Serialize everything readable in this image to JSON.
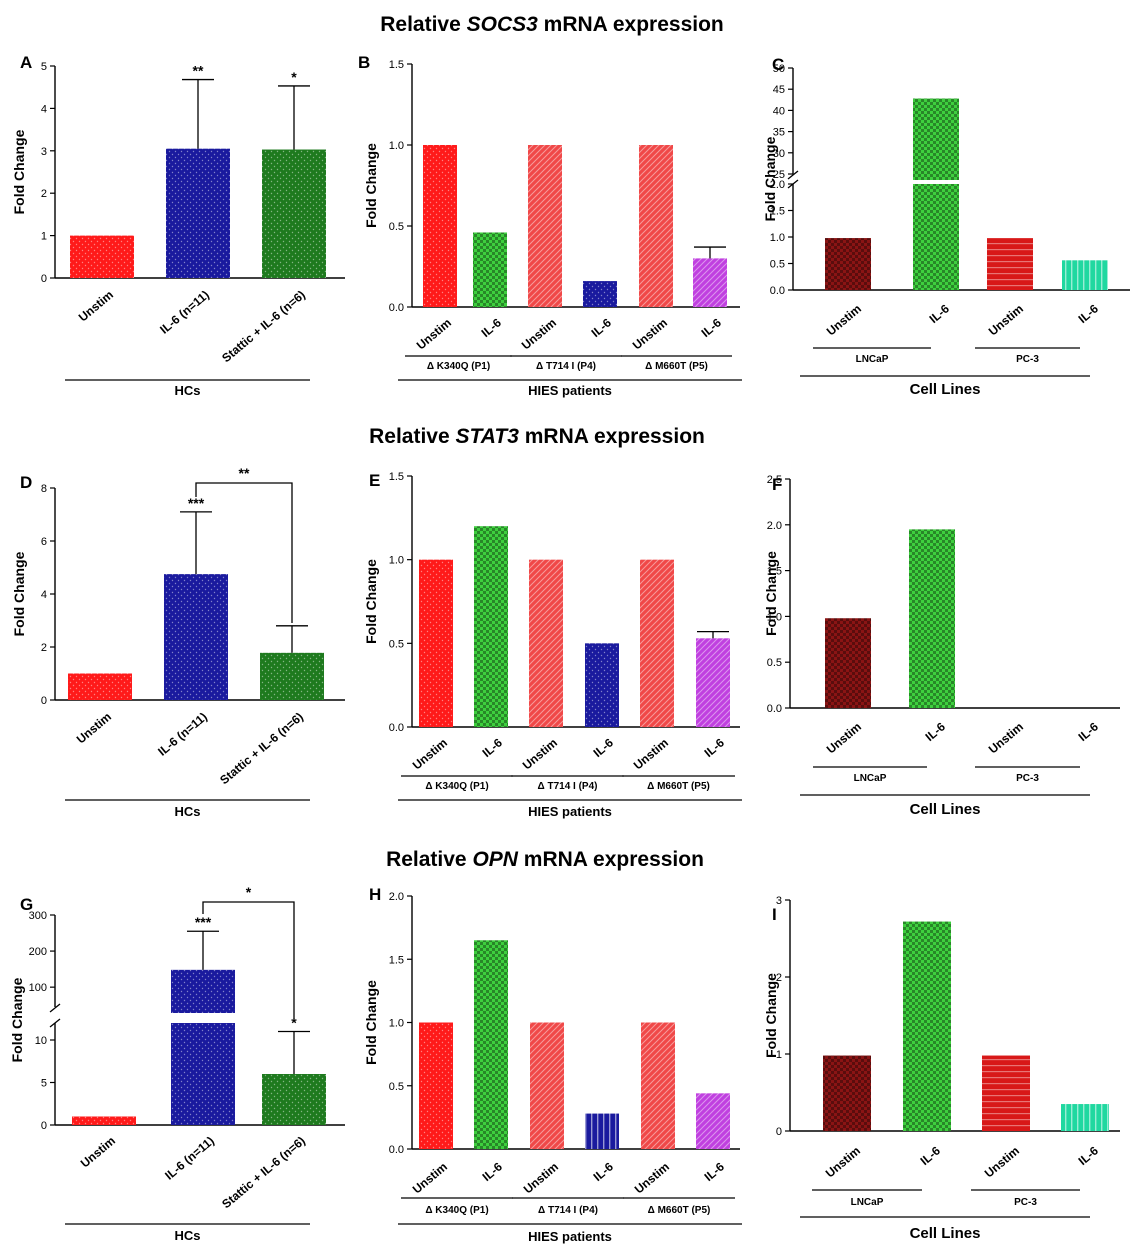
{
  "colors": {
    "red": "#ff1a1a",
    "blue": "#1a1a9e",
    "green": "#1e7a1e",
    "salmon": "#f04848",
    "ltgreen": "#3ecf3e",
    "purple": "#c040e0",
    "darkred": "#8a1414",
    "crimson": "#d81818",
    "teal": "#20d8a0"
  },
  "row_titles": [
    {
      "pre": "Relative ",
      "gene": "SOCS3",
      "post": " mRNA expression"
    },
    {
      "pre": "Relative ",
      "gene": "STAT3",
      "post": " mRNA expression"
    },
    {
      "pre": "Relative ",
      "gene": "OPN",
      "post": " mRNA expression"
    }
  ],
  "chart_data": [
    {
      "panel": "A",
      "type": "bar",
      "ylabel": "Fold Change",
      "ylim": [
        0,
        5
      ],
      "yticks": [
        "0",
        "1",
        "2",
        "3",
        "4",
        "5"
      ],
      "categories": [
        "Unstim",
        "IL-6 (n=11)",
        "Stattic + IL-6 (n=6)"
      ],
      "values": [
        1.0,
        3.05,
        3.03
      ],
      "errors": [
        0,
        1.63,
        1.5
      ],
      "colors": [
        "red",
        "blue",
        "green"
      ],
      "significance": [
        "",
        "**",
        "*"
      ],
      "group_label": "HCs"
    },
    {
      "panel": "B",
      "type": "bar",
      "ylabel": "Fold Change",
      "ylim": [
        0,
        1.5
      ],
      "yticks": [
        "0.0",
        "0.5",
        "1.0",
        "1.5"
      ],
      "categories": [
        "Unstim",
        "IL-6",
        "Unstim",
        "IL-6",
        "Unstim",
        "IL-6"
      ],
      "values": [
        1.0,
        0.46,
        1.0,
        0.16,
        1.0,
        0.3
      ],
      "errors": [
        0,
        0,
        0,
        0,
        0,
        0.07
      ],
      "colors": [
        "red",
        "ltgreen",
        "salmon",
        "blue",
        "salmon",
        "purple"
      ],
      "subgroups": [
        "Δ K340Q (P1)",
        "Δ T714 I (P4)",
        "Δ M660T (P5)"
      ],
      "group_label": "HIES patients"
    },
    {
      "panel": "C",
      "type": "bar",
      "ylabel": "Fold Change",
      "yticks_low": [
        "0.0",
        "0.5",
        "1.0",
        "1.5",
        "2.0"
      ],
      "yticks_high": [
        "25",
        "30",
        "35",
        "40",
        "45",
        "50"
      ],
      "categories": [
        "Unstim",
        "IL-6",
        "Unstim",
        "IL-6"
      ],
      "values": [
        0.98,
        42.8,
        0.98,
        0.56
      ],
      "colors": [
        "darkred",
        "ltgreen",
        "crimson",
        "teal"
      ],
      "subgroups": [
        "LNCaP",
        "PC-3"
      ],
      "group_label": "Cell Lines"
    },
    {
      "panel": "D",
      "type": "bar",
      "ylabel": "Fold Change",
      "ylim": [
        0,
        8
      ],
      "yticks": [
        "0",
        "2",
        "4",
        "6",
        "8"
      ],
      "categories": [
        "Unstim",
        "IL-6 (n=11)",
        "Stattic + IL-6 (n=6)"
      ],
      "values": [
        1.0,
        4.75,
        1.78
      ],
      "errors": [
        0,
        2.35,
        1.02
      ],
      "colors": [
        "red",
        "blue",
        "green"
      ],
      "significance": [
        "",
        "***",
        ""
      ],
      "bracket_sig": "**",
      "group_label": "HCs"
    },
    {
      "panel": "E",
      "type": "bar",
      "ylabel": "Fold Change",
      "ylim": [
        0,
        1.5
      ],
      "yticks": [
        "0.0",
        "0.5",
        "1.0",
        "1.5"
      ],
      "categories": [
        "Unstim",
        "IL-6",
        "Unstim",
        "IL-6",
        "Unstim",
        "IL-6"
      ],
      "values": [
        1.0,
        1.2,
        1.0,
        0.5,
        1.0,
        0.53
      ],
      "errors": [
        0,
        0,
        0,
        0,
        0,
        0.04
      ],
      "colors": [
        "red",
        "ltgreen",
        "salmon",
        "blue",
        "salmon",
        "purple"
      ],
      "subgroups": [
        "Δ K340Q (P1)",
        "Δ T714 I (P4)",
        "Δ M660T (P5)"
      ],
      "group_label": "HIES patients"
    },
    {
      "panel": "F",
      "type": "bar",
      "ylabel": "Fold Change",
      "ylim": [
        0,
        2.5
      ],
      "yticks": [
        "0.0",
        "0.5",
        "1.0",
        "1.5",
        "2.0",
        "2.5"
      ],
      "categories": [
        "Unstim",
        "IL-6",
        "Unstim",
        "IL-6"
      ],
      "values": [
        0.98,
        1.95,
        0,
        0
      ],
      "colors": [
        "darkred",
        "ltgreen",
        "crimson",
        "teal"
      ],
      "subgroups": [
        "LNCaP",
        "PC-3"
      ],
      "group_label": "Cell Lines"
    },
    {
      "panel": "G",
      "type": "bar",
      "ylabel": "Fold Change",
      "yticks_low": [
        "0",
        "5",
        "10"
      ],
      "yticks_high": [
        "100",
        "200",
        "300"
      ],
      "categories": [
        "Unstim",
        "IL-6 (n=11)",
        "Stattic + IL-6 (n=6)"
      ],
      "values": [
        1.0,
        148,
        6.0
      ],
      "errors": [
        0,
        107,
        5.0
      ],
      "colors": [
        "red",
        "blue",
        "green"
      ],
      "significance": [
        "",
        "***",
        "*"
      ],
      "bracket_sig": "*",
      "group_label": "HCs"
    },
    {
      "panel": "H",
      "type": "bar",
      "ylabel": "Fold Change",
      "ylim": [
        0,
        2.0
      ],
      "yticks": [
        "0.0",
        "0.5",
        "1.0",
        "1.5",
        "2.0"
      ],
      "categories": [
        "Unstim",
        "IL-6",
        "Unstim",
        "IL-6",
        "Unstim",
        "IL-6"
      ],
      "values": [
        1.0,
        1.65,
        1.0,
        0.28,
        1.0,
        0.44
      ],
      "errors": [
        0,
        0,
        0,
        0,
        0,
        0
      ],
      "colors": [
        "red",
        "ltgreen",
        "salmon",
        "blue",
        "salmon",
        "purple"
      ],
      "subgroups": [
        "Δ K340Q (P1)",
        "Δ T714 I (P4)",
        "Δ M660T (P5)"
      ],
      "group_label": "HIES patients"
    },
    {
      "panel": "I",
      "type": "bar",
      "ylabel": "Fold Change",
      "ylim": [
        0,
        3
      ],
      "yticks": [
        "0",
        "1",
        "2",
        "3"
      ],
      "categories": [
        "Unstim",
        "IL-6",
        "Unstim",
        "IL-6"
      ],
      "values": [
        0.98,
        2.72,
        0.98,
        0.35
      ],
      "colors": [
        "darkred",
        "ltgreen",
        "crimson",
        "teal"
      ],
      "subgroups": [
        "LNCaP",
        "PC-3"
      ],
      "group_label": "Cell Lines"
    }
  ]
}
